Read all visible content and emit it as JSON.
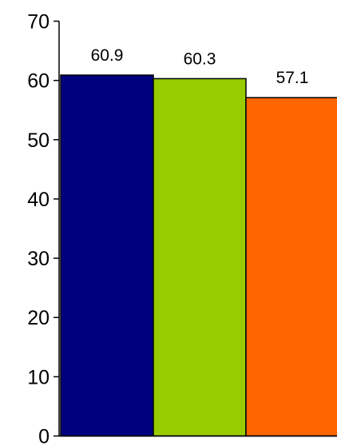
{
  "chart_data": {
    "type": "bar",
    "categories": [
      "",
      "",
      ""
    ],
    "values": [
      60.9,
      60.3,
      57.1
    ],
    "data_labels": [
      "60.9",
      "60.3",
      "57.1"
    ],
    "colors": [
      "#00007f",
      "#99cc00",
      "#ff6600"
    ],
    "ylim": [
      0,
      70
    ],
    "yticks": [
      0,
      10,
      20,
      30,
      40,
      50,
      60,
      70
    ],
    "ytick_labels": [
      "0",
      "10",
      "20",
      "30",
      "40",
      "50",
      "60",
      "70"
    ],
    "title": "",
    "xlabel": "",
    "ylabel": "",
    "grid": false,
    "legend": false
  }
}
